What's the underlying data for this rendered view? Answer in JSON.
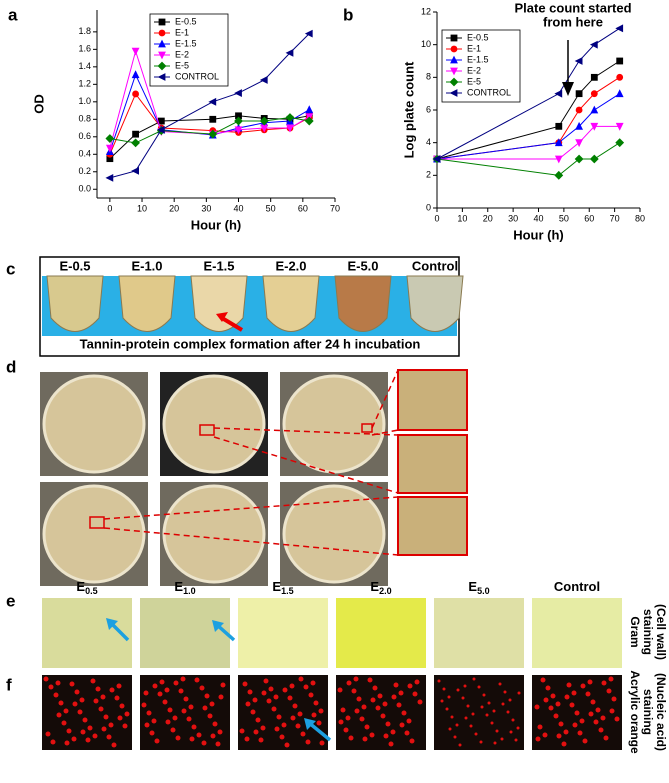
{
  "chart_data": [
    {
      "type": "line",
      "panel": "a",
      "x_label": "Hour (h)",
      "y_label": "OD",
      "x": [
        0,
        8,
        16,
        32,
        40,
        48,
        56,
        62
      ],
      "xlim": [
        -4,
        70
      ],
      "ylim": [
        -0.1,
        2.05
      ],
      "xticks": [
        0,
        10,
        20,
        30,
        40,
        50,
        60,
        70
      ],
      "yticks": [
        {
          "value": 0,
          "label": "0.0"
        },
        0.2,
        0.4,
        0.6,
        0.8,
        {
          "value": 1,
          "label": "1.0"
        },
        1.2,
        1.4,
        1.6,
        1.8
      ],
      "legend": "upper left",
      "series": [
        {
          "name": "E-0.5",
          "color": "#000000",
          "marker": "square",
          "values": [
            0.35,
            0.63,
            0.78,
            0.8,
            0.84,
            0.81,
            0.8,
            0.84
          ]
        },
        {
          "name": "E-1",
          "color": "#ff0000",
          "marker": "circle",
          "values": [
            0.4,
            1.09,
            0.7,
            0.67,
            0.65,
            0.68,
            0.7,
            0.82
          ]
        },
        {
          "name": "E-1.5",
          "color": "#0000ff",
          "marker": "triangle-up",
          "values": [
            0.43,
            1.31,
            0.68,
            0.62,
            0.7,
            0.76,
            0.78,
            0.91
          ]
        },
        {
          "name": "E-2",
          "color": "#ff00ff",
          "marker": "triangle-down",
          "values": [
            0.47,
            1.58,
            0.66,
            0.63,
            0.68,
            0.7,
            0.7,
            0.83
          ]
        },
        {
          "name": "E-5",
          "color": "#008000",
          "marker": "diamond",
          "values": [
            0.58,
            0.53,
            0.67,
            0.63,
            0.78,
            0.78,
            0.82,
            0.78
          ]
        },
        {
          "name": "CONTROL",
          "color": "#000080",
          "marker": "triangle-left",
          "values": [
            0.13,
            0.21,
            0.68,
            1.0,
            1.1,
            1.25,
            1.56,
            1.78
          ]
        }
      ]
    },
    {
      "type": "line",
      "panel": "b",
      "x_label": "Hour (h)",
      "y_label": "Log plate count",
      "annotation": [
        "Plate count started",
        "from here"
      ],
      "x": [
        0,
        48,
        56,
        62,
        72
      ],
      "xlim": [
        0,
        80
      ],
      "ylim": [
        0,
        12
      ],
      "xticks": [
        0,
        10,
        20,
        30,
        40,
        50,
        60,
        70,
        80
      ],
      "yticks": [
        0,
        2,
        4,
        6,
        8,
        10,
        12
      ],
      "legend": "upper left",
      "series": [
        {
          "name": "E-0.5",
          "color": "#000000",
          "marker": "square",
          "values": [
            3,
            5,
            7,
            8,
            9
          ]
        },
        {
          "name": "E-1",
          "color": "#ff0000",
          "marker": "circle",
          "values": [
            3,
            4,
            6,
            7,
            8
          ]
        },
        {
          "name": "E-1.5",
          "color": "#0000ff",
          "marker": "triangle-up",
          "values": [
            3,
            4,
            5,
            6,
            7
          ]
        },
        {
          "name": "E-2",
          "color": "#ff00ff",
          "marker": "triangle-down",
          "values": [
            3,
            3,
            4,
            5,
            5
          ]
        },
        {
          "name": "E-5",
          "color": "#008000",
          "marker": "diamond",
          "values": [
            3,
            2,
            3,
            3,
            4
          ]
        },
        {
          "name": "CONTROL",
          "color": "#000080",
          "marker": "triangle-left",
          "values": [
            3,
            7,
            9,
            10,
            11
          ]
        }
      ]
    }
  ],
  "panel_c": {
    "letter": "c",
    "labels": [
      "E-0.5",
      "E-1.0",
      "E-1.5",
      "E-2.0",
      "E-5.0",
      "Control"
    ],
    "caption": "Tannin-protein complex formation after 24 h incubation"
  },
  "panel_d": {
    "letter": "d"
  },
  "panel_e": {
    "letter": "e",
    "labels": [
      {
        "base": "E",
        "sub": "0.5"
      },
      {
        "base": "E",
        "sub": "1.0"
      },
      {
        "base": "E",
        "sub": "1.5"
      },
      {
        "base": "E",
        "sub": "2.0"
      },
      {
        "base": "E",
        "sub": "5.0"
      },
      {
        "base": "Control"
      }
    ],
    "side": [
      "Gram",
      "staining",
      "(Cell wall)"
    ]
  },
  "panel_f": {
    "letter": "f",
    "side": [
      "Acrylic orange",
      "staining",
      "(Nucleic acid)"
    ]
  }
}
